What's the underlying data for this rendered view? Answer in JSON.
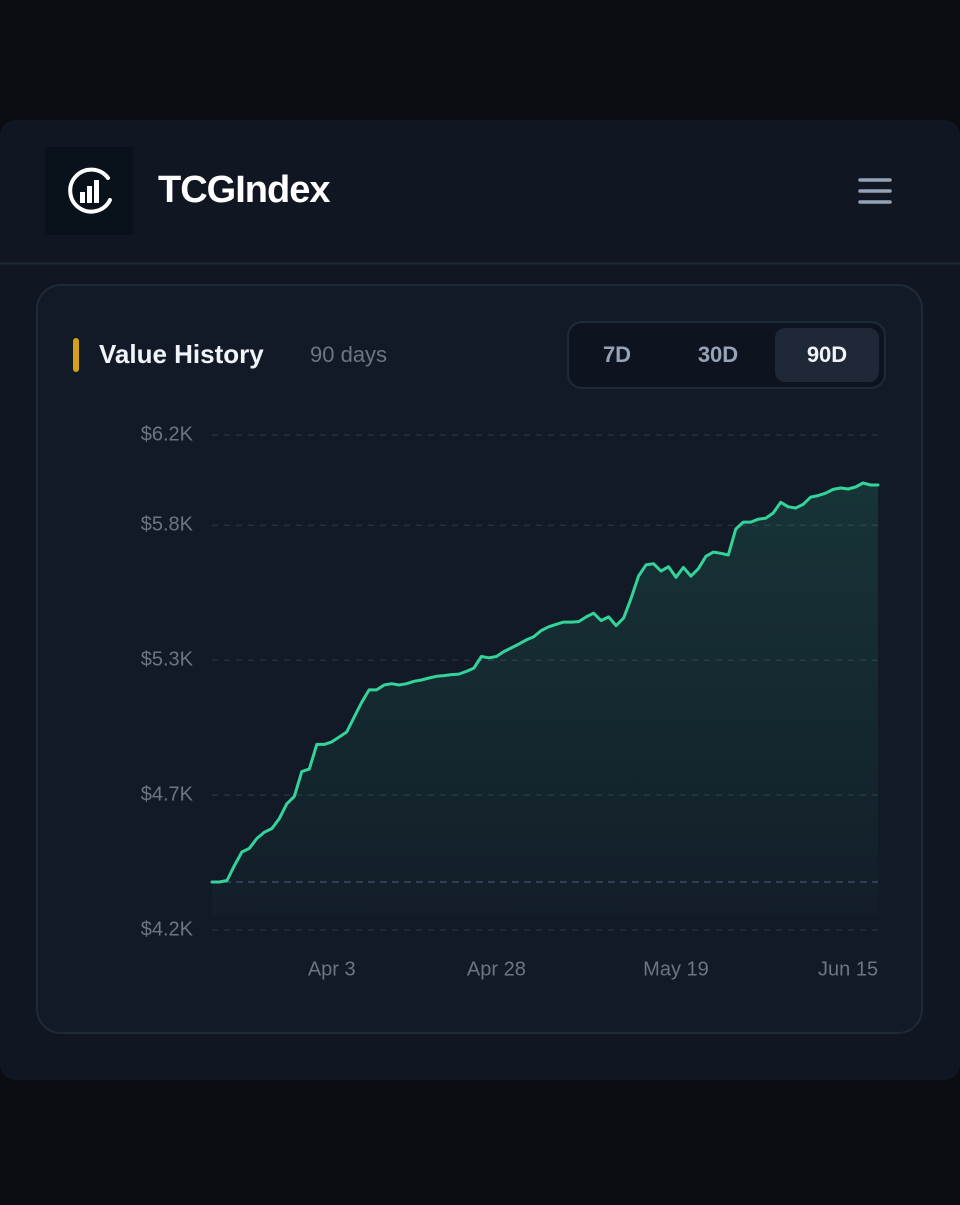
{
  "header": {
    "brand": "TCGIndex"
  },
  "range_selector": {
    "options": [
      "7D",
      "30D",
      "90D"
    ],
    "active": "90D"
  },
  "chart_data": {
    "type": "area",
    "title": "Value History",
    "subtitle": "90 days",
    "color": "#34d399",
    "values": [
      4394,
      4394,
      4400,
      4460,
      4515,
      4530,
      4570,
      4595,
      4610,
      4650,
      4710,
      4740,
      4840,
      4850,
      4950,
      4950,
      4960,
      4980,
      5000,
      5060,
      5120,
      5170,
      5170,
      5190,
      5195,
      5190,
      5195,
      5205,
      5210,
      5218,
      5225,
      5228,
      5232,
      5234,
      5245,
      5258,
      5305,
      5300,
      5305,
      5325,
      5340,
      5355,
      5372,
      5385,
      5410,
      5425,
      5435,
      5444,
      5444,
      5446,
      5465,
      5480,
      5450,
      5465,
      5430,
      5460,
      5540,
      5630,
      5675,
      5680,
      5650,
      5668,
      5625,
      5665,
      5630,
      5660,
      5710,
      5727,
      5722,
      5715,
      5820,
      5848,
      5848,
      5860,
      5864,
      5885,
      5928,
      5910,
      5905,
      5920,
      5949,
      5955,
      5965,
      5980,
      5986,
      5982,
      5990,
      6006,
      5998,
      5998
    ],
    "xlim": [
      0,
      89
    ],
    "xticks": [
      {
        "value": 16,
        "label": "Apr 3"
      },
      {
        "value": 38,
        "label": "Apr 28"
      },
      {
        "value": 62,
        "label": "May 19"
      },
      {
        "value": 85,
        "label": "Jun 15"
      }
    ],
    "ylim": [
      4200,
      6200
    ],
    "yticks": [
      {
        "value": 4200,
        "label": "$4.2K"
      },
      {
        "value": 4745,
        "label": "$4.7K"
      },
      {
        "value": 5290,
        "label": "$5.3K"
      },
      {
        "value": 5835,
        "label": "$5.8K"
      },
      {
        "value": 6200,
        "label": "$6.2K"
      }
    ],
    "grid": true
  }
}
